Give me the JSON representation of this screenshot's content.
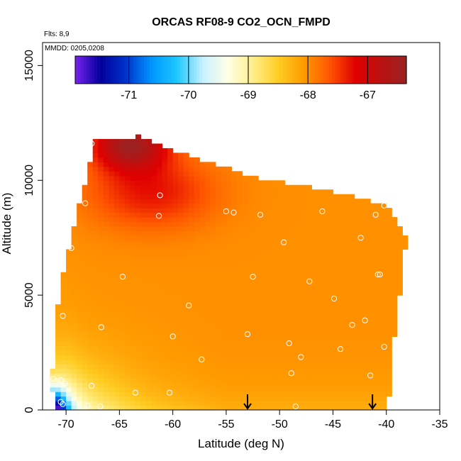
{
  "chart_data": {
    "type": "heatmap",
    "title": "ORCAS RF08-9 CO2_OCN_FMPD",
    "flights_note": "Flts: 8,9",
    "dates_note": "MMDD: 0205,0208",
    "xlabel": "Latitude (deg N)",
    "ylabel": "Altitude (m)",
    "xlim": [
      -72.2,
      -35
    ],
    "ylim": [
      0,
      16000
    ],
    "x_ticks": [
      -70,
      -65,
      -60,
      -55,
      -50,
      -45,
      -40,
      -35
    ],
    "y_ticks": [
      0,
      5000,
      10000,
      15000
    ],
    "colorbar": {
      "range": [
        -71.9,
        -66.35
      ],
      "ticks": [
        -71,
        -70,
        -69,
        -68,
        -67
      ],
      "colors": [
        "#7a22ee",
        "#00009b",
        "#0033cc",
        "#0096ff",
        "#1ec8ff",
        "#c8f0ff",
        "#ffffe6",
        "#ffee88",
        "#ffcc22",
        "#ff9900",
        "#ff5500",
        "#e00000",
        "#bb1111",
        "#992222"
      ]
    },
    "field_hull": [
      [
        -71.2,
        0
      ],
      [
        -39.8,
        0
      ],
      [
        -39.6,
        2200
      ],
      [
        -39.0,
        4000
      ],
      [
        -38.5,
        6000
      ],
      [
        -38.2,
        7300
      ],
      [
        -38.2,
        7600
      ],
      [
        -39.0,
        8300
      ],
      [
        -40.0,
        8900
      ],
      [
        -43.0,
        9300
      ],
      [
        -47.0,
        9700
      ],
      [
        -52.0,
        10100
      ],
      [
        -56.0,
        10700
      ],
      [
        -60.0,
        11300
      ],
      [
        -62.5,
        11800
      ],
      [
        -63.0,
        12000
      ],
      [
        -64.0,
        11850
      ],
      [
        -67.5,
        11700
      ],
      [
        -67.9,
        10400
      ],
      [
        -68.5,
        9500
      ],
      [
        -69.5,
        7500
      ],
      [
        -70.5,
        5500
      ],
      [
        -71.0,
        3500
      ],
      [
        -71.3,
        1500
      ]
    ],
    "sample_points": [
      [
        -67.6,
        11600
      ],
      [
        -68.2,
        9000
      ],
      [
        -61.2,
        9350
      ],
      [
        -61.3,
        8450
      ],
      [
        -55.0,
        8650
      ],
      [
        -54.3,
        8600
      ],
      [
        -51.8,
        8500
      ],
      [
        -46.0,
        8650
      ],
      [
        -41.0,
        8500
      ],
      [
        -40.2,
        8900
      ],
      [
        -42.4,
        7500
      ],
      [
        -49.6,
        7300
      ],
      [
        -69.5,
        7050
      ],
      [
        -64.7,
        5800
      ],
      [
        -52.5,
        5800
      ],
      [
        -47.2,
        5600
      ],
      [
        -40.8,
        5900
      ],
      [
        -40.6,
        5900
      ],
      [
        -44.9,
        4850
      ],
      [
        -58.5,
        4550
      ],
      [
        -70.3,
        4100
      ],
      [
        -66.7,
        3600
      ],
      [
        -60.0,
        3200
      ],
      [
        -53.0,
        3300
      ],
      [
        -43.2,
        3700
      ],
      [
        -42.0,
        3900
      ],
      [
        -49.1,
        2900
      ],
      [
        -44.3,
        2650
      ],
      [
        -40.2,
        2750
      ],
      [
        -48.0,
        2300
      ],
      [
        -57.3,
        2200
      ],
      [
        -48.9,
        1600
      ],
      [
        -41.5,
        1500
      ],
      [
        -71.2,
        1350
      ],
      [
        -70.5,
        1300
      ],
      [
        -70.1,
        1150
      ],
      [
        -67.6,
        1050
      ],
      [
        -63.5,
        750
      ],
      [
        -60.3,
        750
      ],
      [
        -70.3,
        250
      ],
      [
        -68.0,
        200
      ],
      [
        -66.8,
        150
      ],
      [
        -70.5,
        350
      ],
      [
        -48.5,
        150
      ]
    ],
    "arrows_at_lat": [
      -53.0,
      -41.3
    ]
  }
}
